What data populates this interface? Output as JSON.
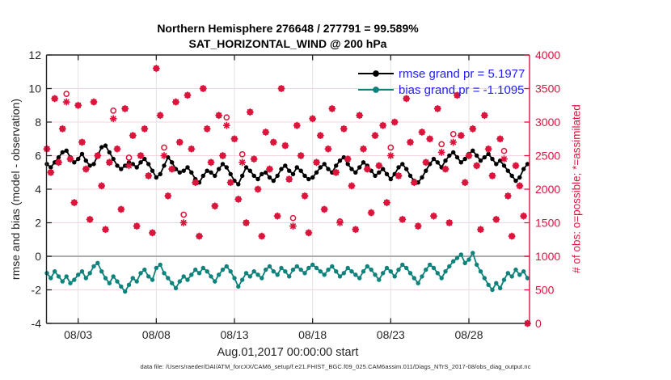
{
  "title": {
    "line1": "Northern Hemisphere 276648 / 277791 = 99.589%",
    "line2": "SAT_HORIZONTAL_WIND @ 200 hPa"
  },
  "legend": [
    {
      "label": "rmse grand pr = 5.1977",
      "value": 5.1977,
      "color": "#000000"
    },
    {
      "label": "bias grand pr = -1.1095",
      "value": -1.1095,
      "color": "#0D837C"
    }
  ],
  "colors": {
    "rmse": "#000000",
    "bias": "#0D837C",
    "obs": "#DC143C",
    "legend_text": "#1f1fff",
    "axis": "#262626",
    "zero_line": "#ababab",
    "grid_h": "#f6d5de",
    "grid_v": "#e3e3e3"
  },
  "axes": {
    "left": {
      "label": "rmse and bias (model - observation)",
      "ticks": [
        12,
        10,
        8,
        6,
        4,
        2,
        0,
        -2,
        -4
      ],
      "range": [
        -4,
        12
      ]
    },
    "right": {
      "label": "# of obs: o=possible; *=assimilated",
      "ticks": [
        4000,
        3500,
        3000,
        2500,
        2000,
        1500,
        1000,
        500,
        0
      ],
      "range": [
        0,
        4000
      ]
    },
    "x": {
      "label": "Aug.01,2017 00:00:00 start",
      "tick_labels": [
        "08/03",
        "08/08",
        "08/13",
        "08/18",
        "08/23",
        "08/28"
      ],
      "tick_days": [
        2,
        7,
        12,
        17,
        22,
        27
      ],
      "range_days": [
        0,
        30.9
      ]
    }
  },
  "footer": "data file: /Users/raeder/DAI/ATM_forcXX/CAM6_setup/f.e21.FHIST_BGC.f09_025.CAM6assim.011/Diags_NTrS_2017-08/obs_diag_output.nc",
  "chart_data": {
    "type": "line",
    "x_start": "Aug 1, 2017 00:00",
    "interval_hours": 6,
    "grid": "on",
    "legend_position": "top-right-inside",
    "series": [
      {
        "name": "rmse",
        "axis": "left",
        "style": "line+dot",
        "color": "#000000",
        "values": [
          5.5,
          5.3,
          5.6,
          5.9,
          6.2,
          6.3,
          5.9,
          5.6,
          5.8,
          6.1,
          5.7,
          5.4,
          5.5,
          6.0,
          6.5,
          6.6,
          6.2,
          5.8,
          5.4,
          5.2,
          5.4,
          5.6,
          5.5,
          5.3,
          5.6,
          5.8,
          5.5,
          5.1,
          4.7,
          4.9,
          5.4,
          5.9,
          5.6,
          5.2,
          5.0,
          5.1,
          5.3,
          5.0,
          4.6,
          4.4,
          4.8,
          5.1,
          5.0,
          4.8,
          5.2,
          5.5,
          5.3,
          4.9,
          4.5,
          4.3,
          4.8,
          5.3,
          5.1,
          4.8,
          4.6,
          4.9,
          5.0,
          4.7,
          4.5,
          4.8,
          5.2,
          5.4,
          5.1,
          4.9,
          5.3,
          5.1,
          4.8,
          4.6,
          4.7,
          5.0,
          5.3,
          5.5,
          5.2,
          5.0,
          5.4,
          5.7,
          5.9,
          5.5,
          5.2,
          5.0,
          5.3,
          5.6,
          5.4,
          5.1,
          4.8,
          5.0,
          5.2,
          4.9,
          4.6,
          4.9,
          5.3,
          5.5,
          5.2,
          4.8,
          4.5,
          4.4,
          4.7,
          5.1,
          5.5,
          5.8,
          5.6,
          5.3,
          5.7,
          6.0,
          6.2,
          5.9,
          5.6,
          5.8,
          6.1,
          6.3,
          6.0,
          5.7,
          5.9,
          6.1,
          5.8,
          5.5,
          5.7,
          5.4,
          5.1,
          4.8,
          4.5,
          4.7,
          5.2,
          5.5
        ]
      },
      {
        "name": "bias",
        "axis": "left",
        "style": "line+dot",
        "color": "#0D837C",
        "values": [
          -1.0,
          -1.3,
          -0.9,
          -1.2,
          -1.5,
          -1.2,
          -1.6,
          -1.4,
          -1.1,
          -0.9,
          -1.3,
          -1.0,
          -0.6,
          -0.4,
          -0.9,
          -1.3,
          -1.6,
          -1.2,
          -1.5,
          -1.8,
          -2.1,
          -1.7,
          -1.3,
          -1.5,
          -1.0,
          -0.8,
          -1.2,
          -1.4,
          -0.7,
          -0.5,
          -1.0,
          -1.3,
          -1.6,
          -1.9,
          -1.5,
          -1.2,
          -1.4,
          -1.1,
          -0.8,
          -1.0,
          -0.7,
          -0.9,
          -1.2,
          -1.5,
          -1.1,
          -0.8,
          -0.6,
          -0.9,
          -1.3,
          -1.8,
          -1.4,
          -1.0,
          -1.2,
          -0.9,
          -1.1,
          -1.3,
          -0.8,
          -0.6,
          -0.9,
          -1.1,
          -0.7,
          -0.9,
          -1.2,
          -0.8,
          -0.6,
          -0.8,
          -1.0,
          -0.7,
          -0.5,
          -0.7,
          -0.9,
          -1.1,
          -0.8,
          -0.6,
          -0.9,
          -1.2,
          -1.0,
          -0.7,
          -0.9,
          -1.1,
          -1.3,
          -0.9,
          -0.6,
          -0.8,
          -1.1,
          -1.4,
          -1.0,
          -0.7,
          -0.9,
          -1.2,
          -0.8,
          -0.5,
          -0.7,
          -1.0,
          -1.3,
          -1.6,
          -1.2,
          -0.8,
          -0.5,
          -0.7,
          -1.0,
          -1.3,
          -0.9,
          -0.6,
          -0.3,
          -0.1,
          0.1,
          -0.4,
          -0.2,
          0.2,
          -0.5,
          -0.9,
          -1.3,
          -1.7,
          -2.0,
          -1.6,
          -1.9,
          -1.4,
          -1.0,
          -1.2,
          -0.8,
          -1.1,
          -0.9,
          -1.3
        ]
      },
      {
        "name": "assimilated",
        "axis": "right",
        "style": "asterisk",
        "color": "#DC143C",
        "values": [
          2600,
          2250,
          3350,
          2400,
          2900,
          3300,
          2450,
          1800,
          3250,
          2700,
          2300,
          1550,
          3300,
          2500,
          2050,
          1400,
          2400,
          3050,
          2600,
          1700,
          3200,
          2350,
          2800,
          1450,
          2500,
          2900,
          2200,
          1350,
          3800,
          3100,
          2500,
          1900,
          2300,
          3300,
          2700,
          1500,
          3400,
          2600,
          2100,
          1300,
          3500,
          2900,
          2400,
          1750,
          3100,
          2500,
          2950,
          2100,
          2750,
          1850,
          2400,
          1500,
          3150,
          2450,
          2000,
          1300,
          2850,
          2300,
          2700,
          1600,
          3500,
          2650,
          2150,
          1450,
          2950,
          2500,
          1900,
          1350,
          3050,
          2400,
          2800,
          1700,
          2600,
          3200,
          2250,
          1500,
          2900,
          2450,
          2050,
          1400,
          3100,
          2600,
          2300,
          1650,
          2800,
          2350,
          2950,
          1800,
          2500,
          3000,
          2200,
          1550,
          3350,
          2700,
          2100,
          1450,
          2850,
          2400,
          2750,
          1600,
          3200,
          2550,
          2300,
          1500,
          2700,
          3400,
          2800,
          2100,
          2500,
          2900,
          2350,
          1400,
          3100,
          2600,
          2200,
          1550,
          2750,
          2450,
          1900,
          1300,
          2350,
          2050,
          1600,
          0
        ]
      },
      {
        "name": "possible",
        "axis": "right",
        "style": "circle",
        "color": "#DC143C",
        "values": [
          2600,
          2250,
          3350,
          2400,
          2900,
          3420,
          2450,
          1800,
          3250,
          2700,
          2300,
          1550,
          3300,
          2500,
          2050,
          1400,
          2400,
          3170,
          2600,
          1700,
          3200,
          2470,
          2800,
          1450,
          2500,
          2900,
          2200,
          1350,
          3800,
          3100,
          2620,
          1900,
          2300,
          3300,
          2700,
          1620,
          3400,
          2600,
          2100,
          1300,
          3500,
          2900,
          2400,
          1750,
          3100,
          2500,
          3070,
          2100,
          2750,
          1850,
          2520,
          1500,
          3150,
          2450,
          2000,
          1300,
          2850,
          2300,
          2700,
          1600,
          3500,
          2650,
          2150,
          1570,
          2950,
          2500,
          1900,
          1350,
          3050,
          2400,
          2800,
          1700,
          2600,
          3200,
          2250,
          1520,
          2900,
          2450,
          2050,
          1400,
          3100,
          2600,
          2300,
          1650,
          2800,
          2350,
          2950,
          1800,
          2620,
          3000,
          2200,
          1550,
          3350,
          2700,
          2100,
          1450,
          2850,
          2400,
          2750,
          1600,
          3200,
          2670,
          2300,
          1500,
          2820,
          3400,
          2800,
          2100,
          2500,
          2900,
          2350,
          1400,
          3100,
          2600,
          2200,
          1550,
          2750,
          2570,
          1900,
          1300,
          2350,
          2050,
          1600,
          0
        ]
      }
    ]
  }
}
